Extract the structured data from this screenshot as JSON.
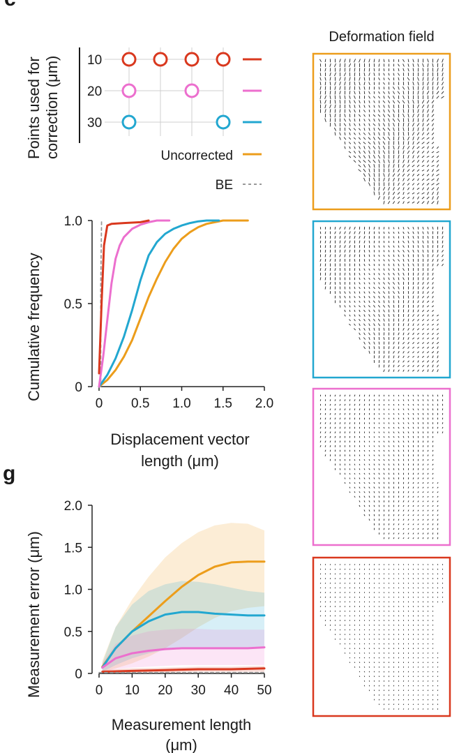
{
  "colors": {
    "red": "#d9381e",
    "pink": "#ec6fce",
    "blue": "#22a7d0",
    "orange": "#ec9d1b",
    "be": "#999999",
    "axis": "#222222"
  },
  "panel_letter_top": "c",
  "panel_letter_bottom": "g",
  "legend": {
    "ylabel_line1": "Points used for",
    "ylabel_line2": "correction (μm)",
    "rows": [
      {
        "label": "10",
        "color": "red",
        "circles": [
          0,
          1,
          2,
          3
        ]
      },
      {
        "label": "20",
        "color": "pink",
        "circles": [
          0,
          2
        ]
      },
      {
        "label": "30",
        "color": "blue",
        "circles": [
          0,
          3
        ]
      }
    ],
    "uncorrected_label": "Uncorrected",
    "be_label": "BE"
  },
  "deformation_field": {
    "title": "Deformation field",
    "panels": [
      {
        "color": "orange",
        "magnitude": 1.0
      },
      {
        "color": "blue",
        "magnitude": 0.7
      },
      {
        "color": "pink",
        "magnitude": 0.35
      },
      {
        "color": "red",
        "magnitude": 0.1
      }
    ]
  },
  "chart_data": [
    {
      "type": "line",
      "id": "cumulative",
      "xlabel_line1": "Displacement vector",
      "xlabel_line2": "length (μm)",
      "ylabel": "Cumulative frequency",
      "xlim": [
        0,
        2.0
      ],
      "ylim": [
        0,
        1.0
      ],
      "xticks": [
        0,
        0.5,
        1.0,
        1.5,
        2.0
      ],
      "xtick_labels": [
        "0",
        "0.5",
        "1.0",
        "1.5",
        "2.0"
      ],
      "yticks": [
        0,
        0.5,
        1.0
      ],
      "ytick_labels": [
        "0",
        "0.5",
        "1.0"
      ],
      "series": [
        {
          "name": "BE",
          "color": "be",
          "dashed": true,
          "x": [
            0.02,
            0.02,
            0.03
          ],
          "y": [
            0,
            0.6,
            1.0
          ]
        },
        {
          "name": "Uncorrected",
          "color": "orange",
          "x": [
            0,
            0.1,
            0.2,
            0.3,
            0.4,
            0.5,
            0.6,
            0.7,
            0.8,
            0.9,
            1.0,
            1.1,
            1.2,
            1.3,
            1.4,
            1.5,
            1.8
          ],
          "y": [
            0,
            0.04,
            0.1,
            0.18,
            0.28,
            0.41,
            0.54,
            0.65,
            0.75,
            0.83,
            0.89,
            0.93,
            0.96,
            0.98,
            0.99,
            1.0,
            1.0
          ]
        },
        {
          "name": "30",
          "color": "blue",
          "x": [
            0,
            0.1,
            0.2,
            0.3,
            0.4,
            0.5,
            0.6,
            0.7,
            0.8,
            0.9,
            1.0,
            1.1,
            1.2,
            1.3,
            1.45
          ],
          "y": [
            0,
            0.07,
            0.17,
            0.3,
            0.46,
            0.64,
            0.79,
            0.87,
            0.92,
            0.95,
            0.97,
            0.985,
            0.995,
            1.0,
            1.0
          ]
        },
        {
          "name": "20",
          "color": "pink",
          "x": [
            0,
            0.05,
            0.1,
            0.15,
            0.2,
            0.25,
            0.3,
            0.4,
            0.5,
            0.6,
            0.7,
            0.85
          ],
          "y": [
            0,
            0.18,
            0.4,
            0.62,
            0.77,
            0.85,
            0.9,
            0.95,
            0.975,
            0.99,
            1.0,
            1.0
          ]
        },
        {
          "name": "10",
          "color": "red",
          "x": [
            0,
            0.03,
            0.06,
            0.1,
            0.15,
            0.3,
            0.5,
            0.6
          ],
          "y": [
            0.08,
            0.5,
            0.85,
            0.97,
            0.98,
            0.985,
            0.99,
            1.0
          ]
        }
      ]
    },
    {
      "type": "area",
      "id": "measurement-error",
      "xlabel_line1": "Measurement length",
      "xlabel_line2": "(μm)",
      "ylabel": "Measurement error (μm)",
      "xlim": [
        0,
        50
      ],
      "ylim": [
        0,
        2.0
      ],
      "xticks": [
        0,
        10,
        20,
        30,
        40,
        50
      ],
      "xtick_labels": [
        "0",
        "10",
        "20",
        "30",
        "40",
        "50"
      ],
      "yticks": [
        0,
        0.5,
        1.0,
        1.5,
        2.0
      ],
      "ytick_labels": [
        "0",
        "0.5",
        "1.0",
        "1.5",
        "2.0"
      ],
      "series": [
        {
          "name": "Uncorrected",
          "color": "orange",
          "x": [
            1,
            5,
            10,
            15,
            20,
            25,
            30,
            35,
            40,
            45,
            50
          ],
          "y": [
            0.08,
            0.3,
            0.5,
            0.68,
            0.86,
            1.03,
            1.17,
            1.27,
            1.32,
            1.33,
            1.33
          ],
          "lower": [
            0.02,
            0.06,
            0.12,
            0.2,
            0.3,
            0.42,
            0.55,
            0.66,
            0.74,
            0.78,
            0.8
          ],
          "upper": [
            0.15,
            0.55,
            0.88,
            1.15,
            1.38,
            1.55,
            1.68,
            1.76,
            1.79,
            1.78,
            1.7
          ]
        },
        {
          "name": "30",
          "color": "blue",
          "x": [
            1,
            5,
            10,
            15,
            20,
            25,
            30,
            35,
            40,
            45,
            50
          ],
          "y": [
            0.07,
            0.3,
            0.5,
            0.62,
            0.7,
            0.73,
            0.73,
            0.71,
            0.7,
            0.69,
            0.69
          ],
          "lower": [
            0.02,
            0.1,
            0.18,
            0.24,
            0.28,
            0.3,
            0.31,
            0.31,
            0.31,
            0.31,
            0.31
          ],
          "upper": [
            0.12,
            0.55,
            0.82,
            0.98,
            1.06,
            1.1,
            1.09,
            1.06,
            1.02,
            0.98,
            0.96
          ]
        },
        {
          "name": "20",
          "color": "pink",
          "x": [
            1,
            5,
            10,
            15,
            20,
            25,
            30,
            35,
            40,
            45,
            50
          ],
          "y": [
            0.07,
            0.18,
            0.24,
            0.27,
            0.29,
            0.3,
            0.3,
            0.3,
            0.3,
            0.3,
            0.31
          ],
          "lower": [
            0.02,
            0.05,
            0.07,
            0.08,
            0.09,
            0.1,
            0.1,
            0.1,
            0.1,
            0.1,
            0.1
          ],
          "upper": [
            0.12,
            0.35,
            0.45,
            0.5,
            0.52,
            0.53,
            0.53,
            0.52,
            0.52,
            0.52,
            0.52
          ]
        },
        {
          "name": "10",
          "color": "red",
          "x": [
            1,
            10,
            20,
            30,
            40,
            50
          ],
          "y": [
            0.02,
            0.03,
            0.04,
            0.05,
            0.05,
            0.06
          ],
          "lower": [
            0.0,
            0.01,
            0.01,
            0.02,
            0.02,
            0.02
          ],
          "upper": [
            0.04,
            0.06,
            0.07,
            0.08,
            0.08,
            0.09
          ]
        },
        {
          "name": "BE",
          "color": "be",
          "dashed": true,
          "x": [
            0,
            50
          ],
          "y": [
            0.01,
            0.01
          ]
        }
      ]
    }
  ]
}
